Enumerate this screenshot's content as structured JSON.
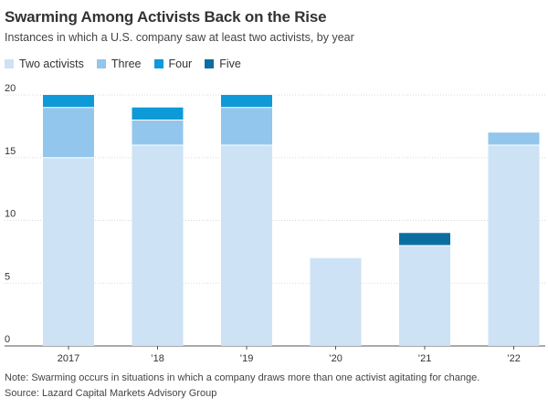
{
  "header": {
    "title": "Swarming Among Activists Back on the Rise",
    "subtitle": "Instances in which a U.S. company saw at least two activists, by year"
  },
  "footer": {
    "note": "Note: Swarming occurs in situations in which a company draws more than one activist agitating for change.",
    "source": "Source: Lazard Capital Markets Advisory Group"
  },
  "chart_data": {
    "type": "bar",
    "stacked": true,
    "title": "Swarming Among Activists Back on the Rise",
    "subtitle": "Instances in which a U.S. company saw at least two activists, by year",
    "categories": [
      "2017",
      "’18",
      "’19",
      "’20",
      "’21",
      "’22"
    ],
    "series": [
      {
        "name": "Two activists",
        "color": "#cde2f5",
        "values": [
          15,
          16,
          16,
          7,
          8,
          16
        ]
      },
      {
        "name": "Three",
        "color": "#92c6ec",
        "values": [
          4,
          2,
          3,
          0,
          0,
          1
        ]
      },
      {
        "name": "Four",
        "color": "#0e9ad8",
        "values": [
          1,
          1,
          1,
          0,
          0,
          0
        ]
      },
      {
        "name": "Five",
        "color": "#0a6fa0",
        "values": [
          0,
          0,
          0,
          0,
          1,
          0
        ]
      }
    ],
    "yticks": [
      0,
      5,
      10,
      15,
      20
    ],
    "ylim": [
      0,
      20
    ],
    "grid": true,
    "legend_position": "top-left",
    "xlabel": "",
    "ylabel": ""
  }
}
